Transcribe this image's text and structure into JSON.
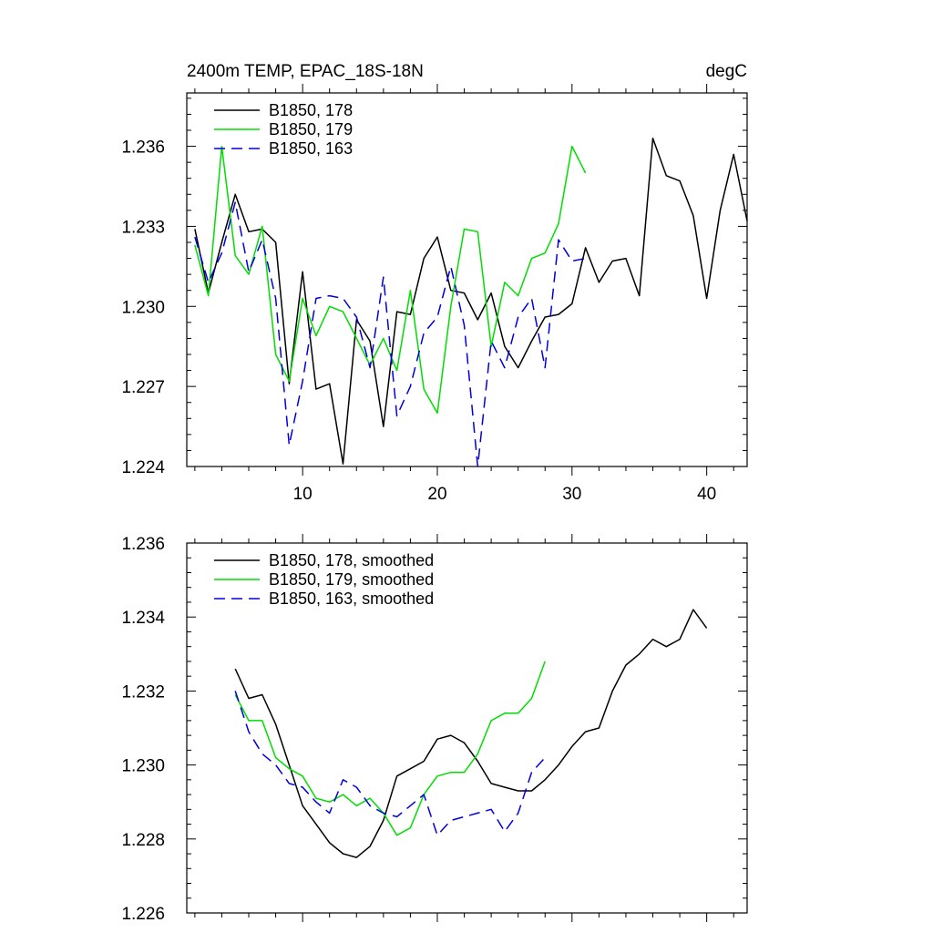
{
  "chart_data": [
    {
      "type": "line",
      "title": "2400m TEMP, EPAC_18S-18N",
      "units": "degC",
      "xlabel": "",
      "ylabel": "",
      "xlim": [
        1.4,
        43
      ],
      "ylim": [
        1.224,
        1.238
      ],
      "xticks": [
        10,
        20,
        30,
        40
      ],
      "xtick_labels": [
        "10",
        "20",
        "30",
        "40"
      ],
      "yticks": [
        1.224,
        1.227,
        1.23,
        1.233,
        1.236
      ],
      "ytick_labels": [
        "1.224",
        "1.227",
        "1.230",
        "1.233",
        "1.236"
      ],
      "legend_position": "top-left",
      "series": [
        {
          "name": "B1850, 178",
          "color": "#000000",
          "dash": "solid",
          "x": [
            2,
            3,
            4,
            5,
            6,
            7,
            8,
            9,
            10,
            11,
            12,
            13,
            14,
            15,
            16,
            17,
            18,
            19,
            20,
            21,
            22,
            23,
            24,
            25,
            26,
            27,
            28,
            29,
            30,
            31,
            32,
            33,
            34,
            35,
            36,
            37,
            38,
            39,
            40,
            41,
            42,
            43
          ],
          "values": [
            1.2329,
            1.2305,
            1.2324,
            1.2342,
            1.2328,
            1.2329,
            1.2324,
            1.2271,
            1.2313,
            1.2269,
            1.2271,
            1.2241,
            1.2295,
            1.2287,
            1.2255,
            1.2298,
            1.2297,
            1.2318,
            1.2326,
            1.2306,
            1.2305,
            1.2295,
            1.2305,
            1.2285,
            1.2277,
            1.2287,
            1.2296,
            1.2297,
            1.2301,
            1.2322,
            1.2309,
            1.2317,
            1.2318,
            1.2304,
            1.2363,
            1.2349,
            1.2347,
            1.2334,
            1.2303,
            1.2336,
            1.2357,
            1.2332
          ]
        },
        {
          "name": "B1850, 179",
          "color": "#00dd00",
          "dash": "solid",
          "x": [
            2,
            3,
            4,
            5,
            6,
            7,
            8,
            9,
            10,
            11,
            12,
            13,
            14,
            15,
            16,
            17,
            18,
            19,
            20,
            21,
            22,
            23,
            24,
            25,
            26,
            27,
            28,
            29,
            30,
            31
          ],
          "values": [
            1.2323,
            1.2304,
            1.236,
            1.2319,
            1.2312,
            1.233,
            1.2282,
            1.2272,
            1.2303,
            1.2289,
            1.23,
            1.2298,
            1.2288,
            1.2278,
            1.2288,
            1.2276,
            1.2306,
            1.2269,
            1.226,
            1.23,
            1.2329,
            1.2328,
            1.2285,
            1.2309,
            1.2304,
            1.2318,
            1.232,
            1.2331,
            1.236,
            1.235
          ]
        },
        {
          "name": "B1850, 163",
          "color": "#0000dd",
          "dash": "dashed",
          "x": [
            2,
            3,
            4,
            5,
            6,
            7,
            8,
            9,
            10,
            11,
            12,
            13,
            14,
            15,
            16,
            17,
            18,
            19,
            20,
            21,
            22,
            23,
            24,
            25,
            26,
            27,
            28,
            29,
            30,
            31
          ],
          "values": [
            1.2326,
            1.2309,
            1.232,
            1.2339,
            1.2313,
            1.2325,
            1.2303,
            1.2248,
            1.2272,
            1.2303,
            1.2304,
            1.2303,
            1.2296,
            1.2277,
            1.2311,
            1.2259,
            1.227,
            1.229,
            1.2296,
            1.2315,
            1.2293,
            1.224,
            1.2287,
            1.2277,
            1.2296,
            1.2303,
            1.2277,
            1.2325,
            1.2317,
            1.2318
          ]
        }
      ]
    },
    {
      "type": "line",
      "title": "",
      "xlabel": "",
      "ylabel": "",
      "xlim": [
        1.4,
        43
      ],
      "ylim": [
        1.226,
        1.236
      ],
      "xticks": [
        10,
        20,
        30,
        40
      ],
      "xtick_labels": [],
      "yticks": [
        1.226,
        1.228,
        1.23,
        1.232,
        1.234,
        1.236
      ],
      "ytick_labels": [
        "1.226",
        "1.228",
        "1.230",
        "1.232",
        "1.234",
        "1.236"
      ],
      "legend_position": "top-left",
      "series": [
        {
          "name": "B1850, 178, smoothed",
          "color": "#000000",
          "dash": "solid",
          "x": [
            5,
            6,
            7,
            8,
            9,
            10,
            11,
            12,
            13,
            14,
            15,
            16,
            17,
            18,
            19,
            20,
            21,
            22,
            23,
            24,
            25,
            26,
            27,
            28,
            29,
            30,
            31,
            32,
            33,
            34,
            35,
            36,
            37,
            38,
            39,
            40
          ],
          "values": [
            1.2326,
            1.2318,
            1.2319,
            1.2311,
            1.23,
            1.2289,
            1.2284,
            1.2279,
            1.2276,
            1.2275,
            1.2278,
            1.2285,
            1.2297,
            1.2299,
            1.2301,
            1.2307,
            1.2308,
            1.2306,
            1.2301,
            1.2295,
            1.2294,
            1.2293,
            1.2293,
            1.2296,
            1.23,
            1.2305,
            1.2309,
            1.231,
            1.232,
            1.2327,
            1.233,
            1.2334,
            1.2332,
            1.2334,
            1.2342,
            1.2337
          ]
        },
        {
          "name": "B1850, 179, smoothed",
          "color": "#00dd00",
          "dash": "solid",
          "x": [
            5,
            6,
            7,
            8,
            9,
            10,
            11,
            12,
            13,
            14,
            15,
            16,
            17,
            18,
            19,
            20,
            21,
            22,
            23,
            24,
            25,
            26,
            27,
            28
          ],
          "values": [
            1.2319,
            1.2312,
            1.2312,
            1.2302,
            1.2299,
            1.2297,
            1.2291,
            1.229,
            1.2292,
            1.2289,
            1.2291,
            1.2287,
            1.2281,
            1.2283,
            1.2292,
            1.2297,
            1.2298,
            1.2298,
            1.2303,
            1.2312,
            1.2314,
            1.2314,
            1.2318,
            1.2328
          ]
        },
        {
          "name": "B1850, 163, smoothed",
          "color": "#0000dd",
          "dash": "dashed",
          "x": [
            5,
            6,
            7,
            8,
            9,
            10,
            11,
            12,
            13,
            14,
            15,
            16,
            17,
            18,
            19,
            20,
            21,
            22,
            23,
            24,
            25,
            26,
            27,
            28
          ],
          "values": [
            1.232,
            1.2309,
            1.2303,
            1.23,
            1.2295,
            1.2294,
            1.229,
            1.2287,
            1.2296,
            1.2294,
            1.2289,
            1.2287,
            1.2286,
            1.2289,
            1.2292,
            1.2281,
            1.2285,
            1.2286,
            1.2287,
            1.2288,
            1.2282,
            1.2287,
            1.2298,
            1.2302
          ]
        }
      ]
    }
  ]
}
